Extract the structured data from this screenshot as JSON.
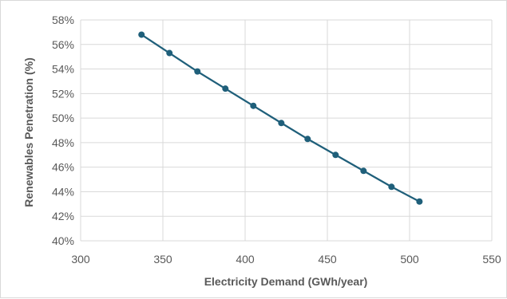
{
  "chart_data": {
    "type": "line",
    "title": "",
    "xlabel": "Electricity Demand (GWh/year)",
    "ylabel": "Renewables Penetration (%)",
    "xlim": [
      300,
      550
    ],
    "ylim": [
      40,
      58
    ],
    "x_ticks": [
      300,
      350,
      400,
      450,
      500,
      550
    ],
    "y_ticks": [
      40,
      42,
      44,
      46,
      48,
      50,
      52,
      54,
      56,
      58
    ],
    "x_tick_labels": [
      "300",
      "350",
      "400",
      "450",
      "500",
      "550"
    ],
    "y_tick_labels": [
      "40%",
      "42%",
      "44%",
      "46%",
      "48%",
      "50%",
      "52%",
      "54%",
      "56%",
      "58%"
    ],
    "grid": true,
    "legend": "none",
    "series": [
      {
        "color": "#1f5f7a",
        "marker": "circle",
        "x": [
          337,
          354,
          371,
          388,
          405,
          422,
          438,
          455,
          472,
          489,
          506
        ],
        "y": [
          56.8,
          55.3,
          53.8,
          52.4,
          51.0,
          49.6,
          48.3,
          47.0,
          45.7,
          44.4,
          43.2
        ]
      }
    ]
  }
}
